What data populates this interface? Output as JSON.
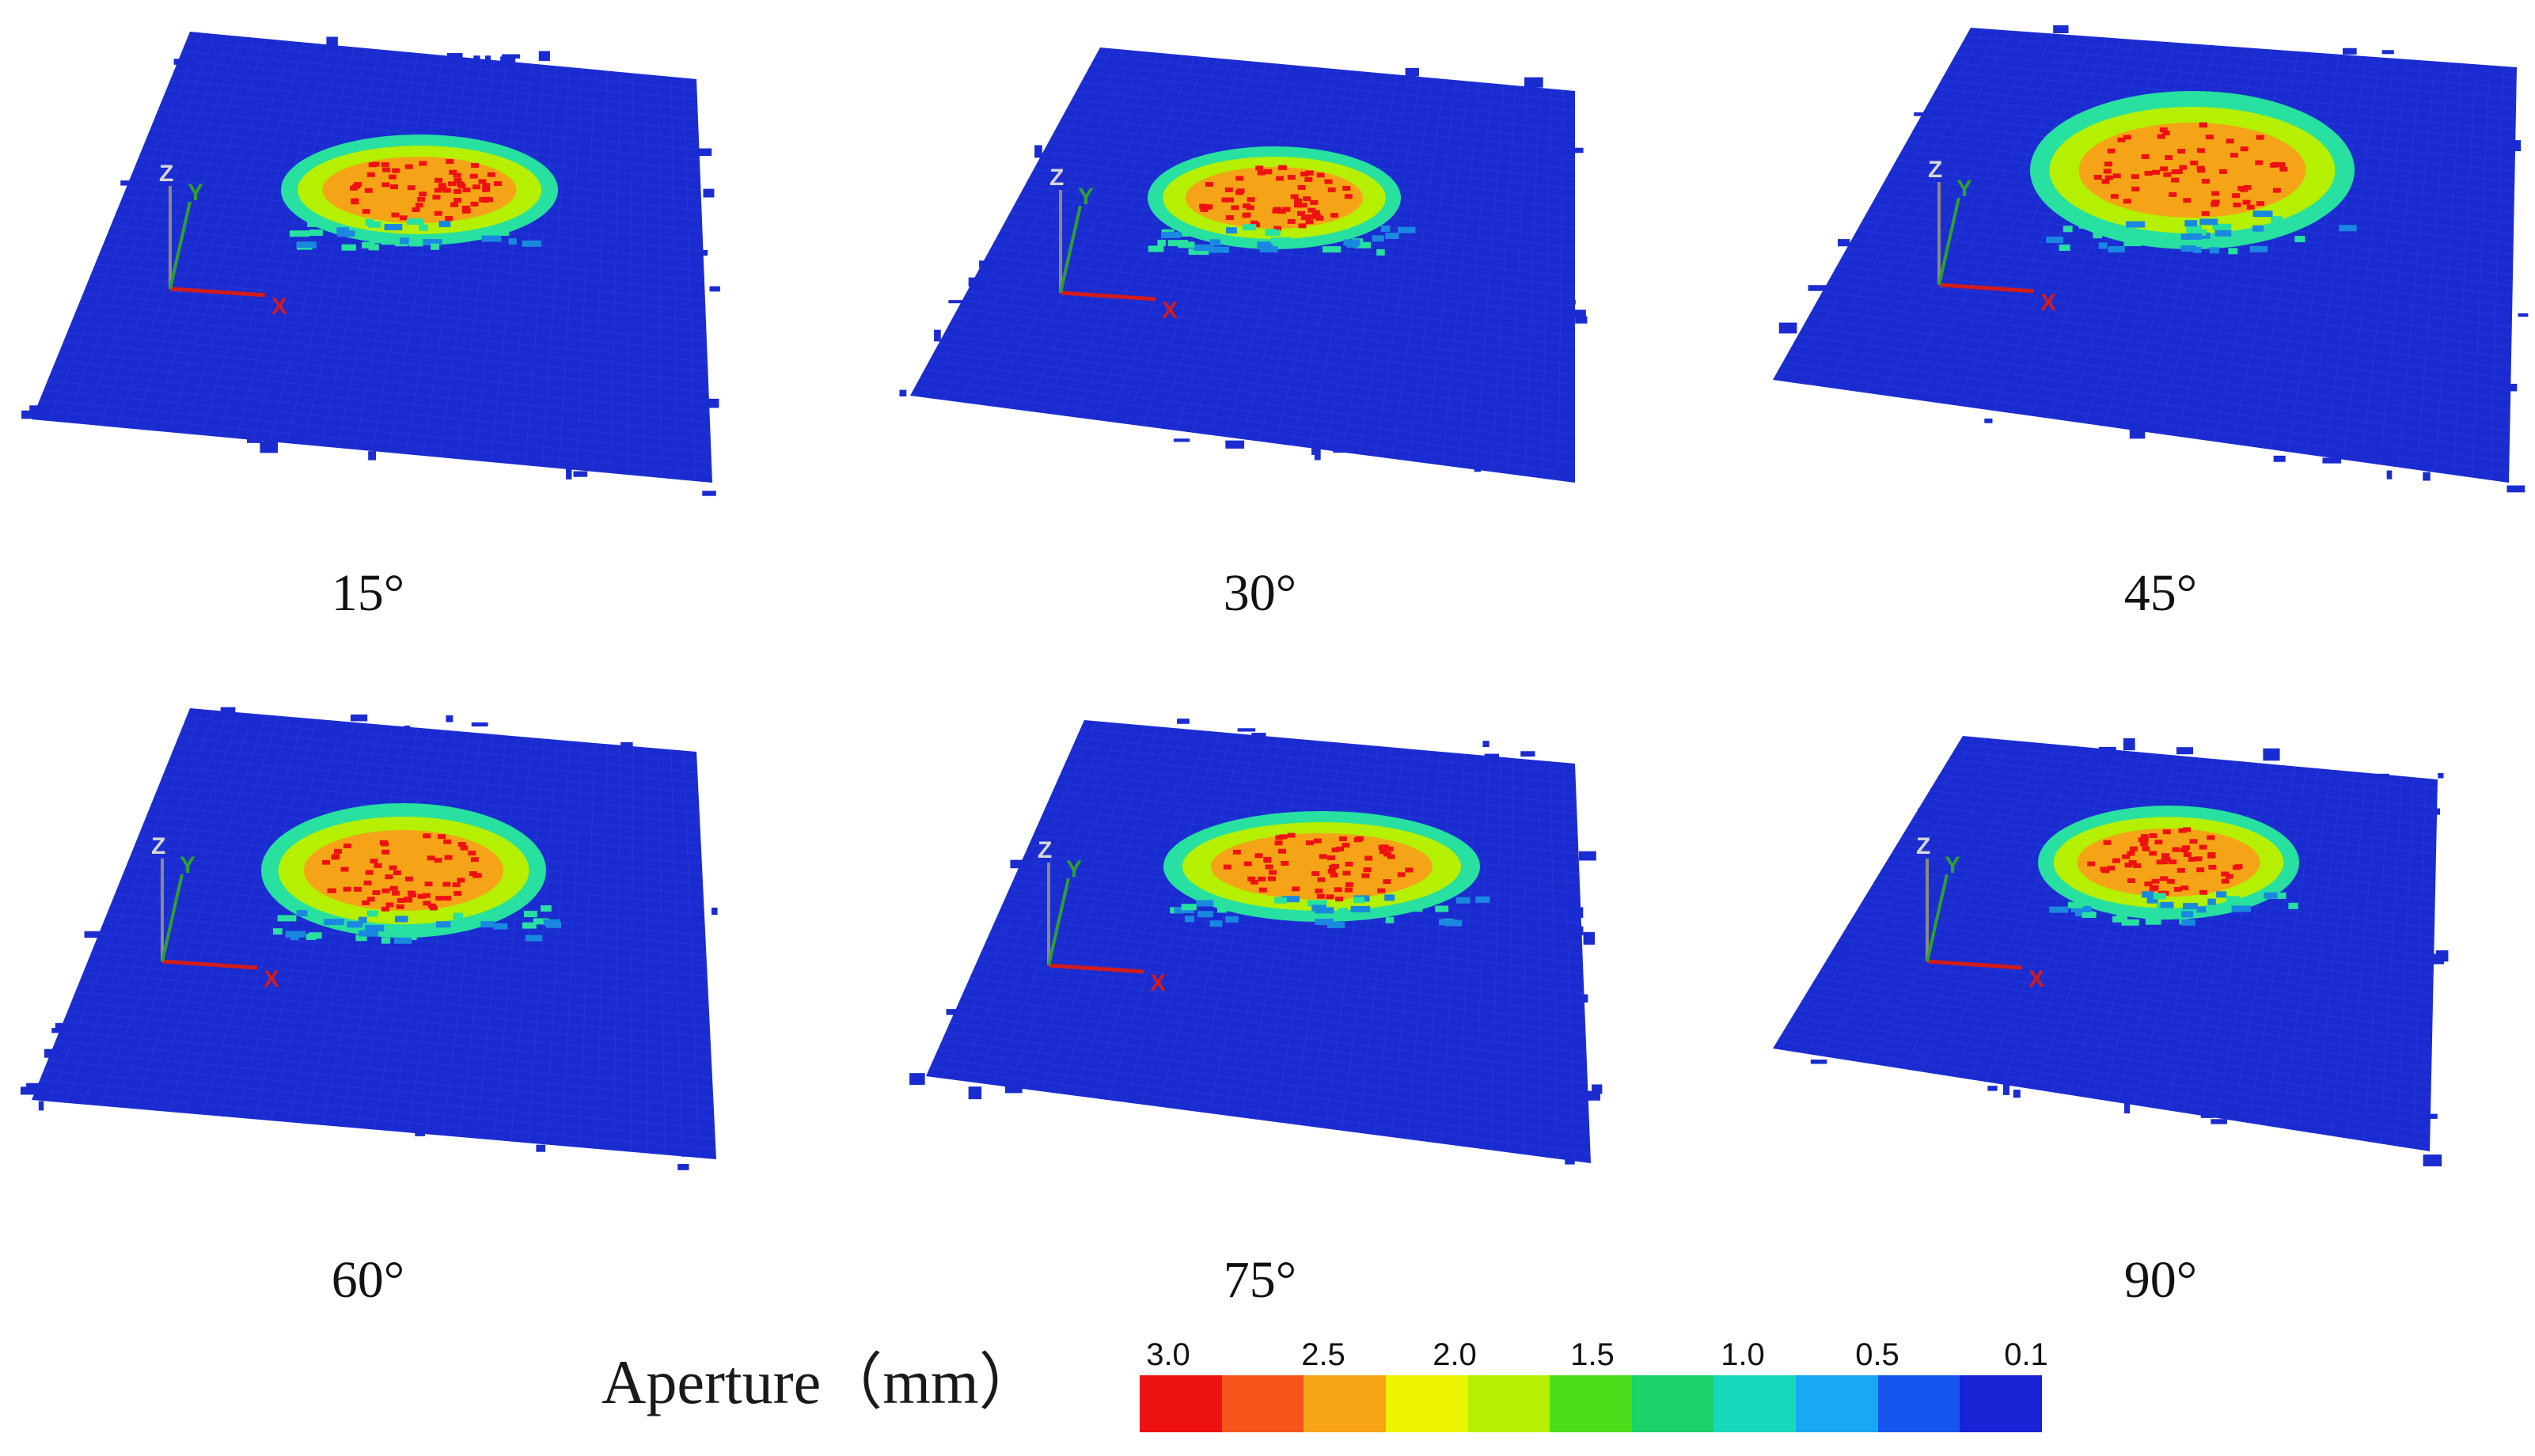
{
  "panels": [
    {
      "id": "p15",
      "label": "15°",
      "axes": {
        "x": "X",
        "y": "Y",
        "z": "Z"
      }
    },
    {
      "id": "p30",
      "label": "30°",
      "axes": {
        "x": "X",
        "y": "Y",
        "z": "Z"
      }
    },
    {
      "id": "p45",
      "label": "45°",
      "axes": {
        "x": "X",
        "y": "Y",
        "z": "Z"
      }
    },
    {
      "id": "p60",
      "label": "60°",
      "axes": {
        "x": "X",
        "y": "Y",
        "z": "Z"
      }
    },
    {
      "id": "p75",
      "label": "75°",
      "axes": {
        "x": "X",
        "y": "Y",
        "z": "Z"
      }
    },
    {
      "id": "p90",
      "label": "90°",
      "axes": {
        "x": "X",
        "y": "Y",
        "z": "Z"
      }
    }
  ],
  "legend": {
    "title": "Aperture（mm）",
    "ticks": [
      "3.0",
      "2.5",
      "2.0",
      "1.5",
      "1.0",
      "0.5",
      "0.1"
    ],
    "colors": [
      "#ee1111",
      "#f5551a",
      "#f7a417",
      "#eef400",
      "#b4f000",
      "#4cde1a",
      "#19d26a",
      "#18d8bb",
      "#18a9f2",
      "#1656ee",
      "#1a22d6"
    ]
  },
  "surface_colors": {
    "base": "#1a2ccf",
    "grid": "#2a3fe0",
    "hot_outer": "#28e0a0",
    "hot_mid": "#b4f000",
    "hot_inner": "#f5a417",
    "hot_core": "#ee1111",
    "axis_x": "#d21c1c",
    "axis_y": "#2fa02f",
    "axis_z": "#8a8a8a"
  }
}
